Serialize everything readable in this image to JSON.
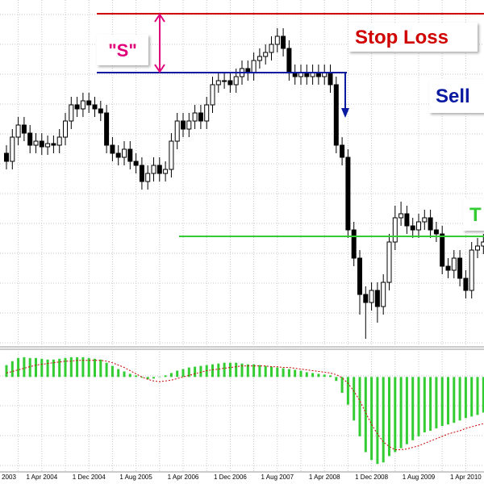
{
  "chart_data": [
    {
      "type": "candlestick",
      "categories": [
        "2003",
        null,
        null,
        null,
        null,
        null,
        "1 Apr 2004",
        null,
        null,
        null,
        null,
        null,
        null,
        null,
        "1 Dec 2004",
        null,
        null,
        null,
        null,
        null,
        null,
        null,
        "1 Aug 2005",
        null,
        null,
        null,
        null,
        null,
        null,
        null,
        "1 Apr 2006",
        null,
        null,
        null,
        null,
        null,
        null,
        null,
        "1 Dec 2006",
        null,
        null,
        null,
        null,
        null,
        null,
        null,
        "1 Aug 2007",
        null,
        null,
        null,
        null,
        null,
        null,
        null,
        "1 Apr 2008",
        null,
        null,
        null,
        null,
        null,
        null,
        null,
        "1 Dec 2008",
        null,
        null,
        null,
        null,
        null,
        null,
        null,
        "1 Aug 2009",
        null,
        null,
        null,
        null,
        null,
        null,
        null,
        "1 Apr 2010",
        null,
        null,
        null
      ],
      "open": [
        240,
        230,
        260,
        275,
        265,
        250,
        255,
        248,
        252,
        250,
        260,
        280,
        300,
        295,
        305,
        300,
        295,
        290,
        250,
        240,
        235,
        245,
        230,
        225,
        205,
        215,
        225,
        215,
        220,
        255,
        280,
        270,
        280,
        290,
        280,
        300,
        325,
        330,
        330,
        325,
        335,
        345,
        340,
        355,
        360,
        365,
        375,
        385,
        370,
        340,
        335,
        340,
        335,
        340,
        335,
        340,
        325,
        250,
        235,
        145,
        110,
        65,
        55,
        70,
        50,
        80,
        130,
        160,
        165,
        150,
        145,
        155,
        160,
        145,
        140,
        100,
        95,
        110,
        85,
        70,
        120,
        125
      ],
      "high": [
        250,
        270,
        285,
        285,
        275,
        265,
        265,
        262,
        262,
        270,
        290,
        310,
        310,
        315,
        315,
        310,
        305,
        300,
        260,
        250,
        255,
        255,
        240,
        235,
        225,
        235,
        235,
        230,
        265,
        290,
        290,
        290,
        300,
        300,
        310,
        335,
        340,
        340,
        340,
        345,
        355,
        355,
        365,
        370,
        375,
        385,
        395,
        395,
        380,
        350,
        350,
        350,
        350,
        350,
        350,
        350,
        335,
        260,
        245,
        155,
        120,
        75,
        80,
        80,
        90,
        140,
        175,
        180,
        175,
        160,
        165,
        170,
        170,
        155,
        150,
        110,
        120,
        120,
        95,
        130,
        135,
        140
      ],
      "low": [
        220,
        220,
        250,
        255,
        240,
        240,
        238,
        238,
        240,
        240,
        250,
        270,
        285,
        285,
        290,
        285,
        280,
        240,
        230,
        225,
        225,
        220,
        215,
        195,
        195,
        205,
        205,
        205,
        210,
        245,
        260,
        260,
        270,
        270,
        270,
        290,
        315,
        320,
        315,
        315,
        325,
        330,
        330,
        345,
        350,
        355,
        365,
        360,
        330,
        325,
        325,
        325,
        325,
        325,
        325,
        315,
        240,
        225,
        135,
        100,
        40,
        10,
        45,
        30,
        40,
        70,
        120,
        150,
        140,
        135,
        135,
        145,
        135,
        130,
        90,
        85,
        85,
        75,
        60,
        60,
        110,
        115
      ],
      "close": [
        230,
        260,
        275,
        265,
        250,
        255,
        248,
        252,
        250,
        260,
        280,
        300,
        295,
        305,
        300,
        295,
        290,
        250,
        240,
        235,
        245,
        230,
        225,
        205,
        215,
        225,
        215,
        220,
        255,
        280,
        270,
        280,
        290,
        280,
        300,
        325,
        330,
        330,
        325,
        335,
        345,
        340,
        355,
        360,
        365,
        375,
        385,
        370,
        340,
        335,
        340,
        335,
        340,
        335,
        340,
        325,
        250,
        235,
        145,
        110,
        65,
        55,
        70,
        50,
        80,
        130,
        160,
        165,
        150,
        145,
        155,
        160,
        145,
        140,
        100,
        95,
        110,
        85,
        70,
        120,
        125,
        130
      ],
      "ylim": [
        0,
        430
      ],
      "grid": true,
      "up_color": "#ffffff",
      "down_color": "#000000",
      "levels": [
        {
          "label": "Stop Loss",
          "value": 413,
          "color": "#d00000"
        },
        {
          "label": "Sell",
          "value": 340,
          "color": "#0a1aa0"
        },
        {
          "label": "T",
          "value": 137,
          "color": "#33cc33"
        }
      ],
      "annotations": [
        {
          "text": "\"S\"",
          "color": "#e0007a"
        }
      ]
    },
    {
      "type": "bar",
      "ylim": [
        -120,
        35
      ],
      "grid": true,
      "series": [
        {
          "type": "bar",
          "color": "#33cc33",
          "values": [
            15,
            20,
            24,
            25,
            24,
            24,
            23,
            22,
            22,
            23,
            24,
            25,
            25,
            25,
            24,
            23,
            22,
            18,
            14,
            10,
            7,
            4,
            2,
            -1,
            -3,
            -2,
            0,
            2,
            5,
            8,
            10,
            12,
            13,
            14,
            15,
            16,
            17,
            18,
            18,
            18,
            17,
            16,
            16,
            15,
            14,
            13,
            12,
            11,
            10,
            9,
            8,
            6,
            5,
            4,
            3,
            2,
            -5,
            -20,
            -35,
            -55,
            -75,
            -95,
            -105,
            -110,
            -108,
            -100,
            -95,
            -90,
            -85,
            -80,
            -75,
            -70,
            -68,
            -65,
            -62,
            -60,
            -58,
            -55,
            -52,
            -50,
            -48,
            -45
          ]
        },
        {
          "type": "line",
          "color": "#cc0000",
          "values": [
            5,
            7,
            9,
            11,
            13,
            15,
            16,
            17,
            18,
            19,
            20,
            20,
            21,
            21,
            21,
            21,
            21,
            20,
            18,
            15,
            12,
            8,
            4,
            0,
            -3,
            -5,
            -6,
            -5,
            -4,
            -2,
            0,
            2,
            4,
            6,
            8,
            9,
            10,
            11,
            12,
            13,
            14,
            14,
            14,
            14,
            14,
            13,
            13,
            12,
            12,
            11,
            10,
            9,
            8,
            7,
            6,
            5,
            3,
            -1,
            -8,
            -18,
            -30,
            -45,
            -60,
            -72,
            -82,
            -88,
            -92,
            -92,
            -91,
            -89,
            -87,
            -84,
            -81,
            -78,
            -75,
            -72,
            -70,
            -68,
            -65,
            -63,
            -61,
            -59
          ]
        }
      ]
    }
  ]
}
